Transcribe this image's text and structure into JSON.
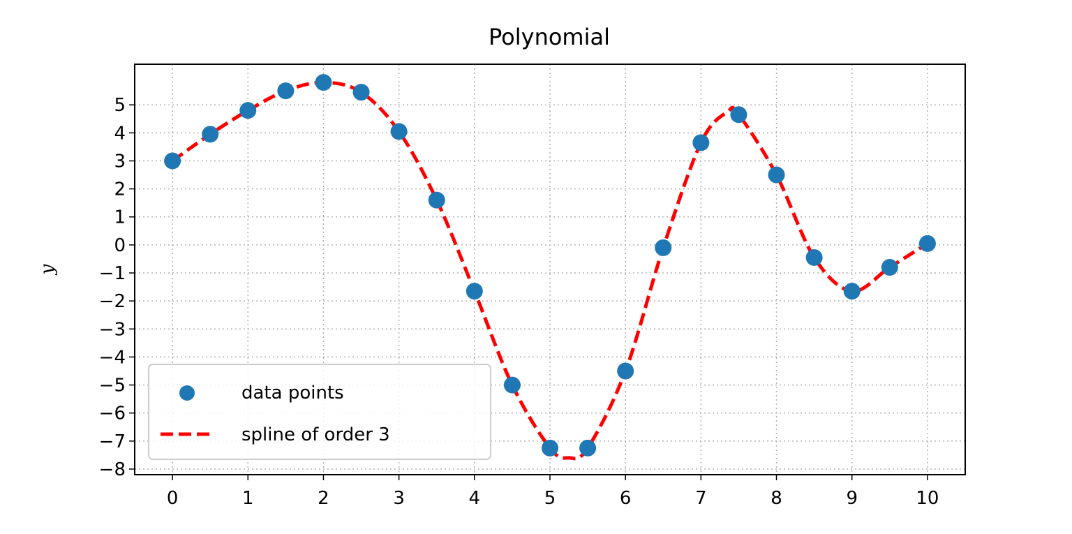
{
  "chart_data": {
    "type": "line",
    "title": "Polynomial",
    "xlabel": "",
    "ylabel": "y",
    "xlim": [
      -0.5,
      10.5
    ],
    "ylim": [
      -8.2,
      6.45
    ],
    "xticks": [
      0,
      1,
      2,
      3,
      4,
      5,
      6,
      7,
      8,
      9,
      10
    ],
    "yticks": [
      -8,
      -7,
      -6,
      -5,
      -4,
      -3,
      -2,
      -1,
      0,
      1,
      2,
      3,
      4,
      5
    ],
    "grid": true,
    "legend_placement": "lower-left",
    "series": [
      {
        "name": "data points",
        "kind": "scatter",
        "color": "#1f77b4",
        "x": [
          0,
          0.5,
          1,
          1.5,
          2,
          2.5,
          3,
          3.5,
          4,
          4.5,
          5,
          5.5,
          6,
          6.5,
          7,
          7.5,
          8,
          8.5,
          9,
          9.5,
          10
        ],
        "y": [
          3.0,
          3.95,
          4.8,
          5.5,
          5.8,
          5.45,
          4.05,
          1.6,
          -1.65,
          -5.0,
          -7.25,
          -7.25,
          -4.5,
          -0.1,
          3.65,
          4.65,
          2.5,
          -0.45,
          -1.65,
          -0.8,
          0.05
        ]
      },
      {
        "name": "spline of order 3",
        "kind": "dashed-line",
        "color": "#ff0000",
        "x": [
          0,
          0.5,
          1,
          1.5,
          2,
          2.5,
          3,
          3.5,
          4,
          4.5,
          5,
          5.25,
          5.5,
          6,
          6.5,
          7,
          7.35,
          7.5,
          8,
          8.5,
          9,
          9.5,
          10
        ],
        "y": [
          3.0,
          3.95,
          4.8,
          5.5,
          5.8,
          5.45,
          4.05,
          1.6,
          -1.65,
          -5.0,
          -7.25,
          -7.6,
          -7.25,
          -4.5,
          -0.1,
          3.65,
          4.75,
          4.65,
          2.5,
          -0.45,
          -1.65,
          -0.8,
          0.05
        ]
      }
    ]
  }
}
